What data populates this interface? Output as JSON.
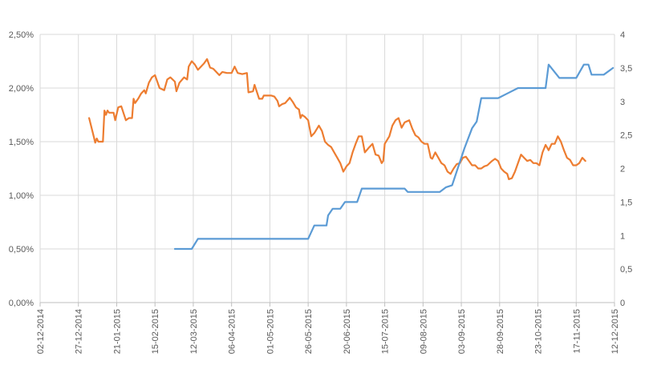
{
  "chart_data": {
    "type": "line",
    "title": "",
    "xlabel": "",
    "ylabel": "",
    "y2label": "",
    "grid": true,
    "legend": "none",
    "x_type": "date",
    "x_ticks": [
      "02-12-2014",
      "27-12-2014",
      "21-01-2015",
      "15-02-2015",
      "12-03-2015",
      "06-04-2015",
      "01-05-2015",
      "26-05-2015",
      "20-06-2015",
      "15-07-2015",
      "09-08-2015",
      "03-09-2015",
      "28-09-2015",
      "23-10-2015",
      "17-11-2015",
      "12-12-2015"
    ],
    "y_left": {
      "min": 0,
      "max": 2.5,
      "ticks": [
        "0,00%",
        "0,50%",
        "1,00%",
        "1,50%",
        "2,00%",
        "2,50%"
      ]
    },
    "y_right": {
      "min": 0,
      "max": 4,
      "ticks": [
        "0",
        "0,5",
        "1",
        "1,5",
        "2",
        "2,5",
        "3",
        "3,5",
        "4"
      ]
    },
    "series": [
      {
        "axis": "left",
        "color": "#ED7D31",
        "points": [
          [
            "2015-01-03",
            1.72
          ],
          [
            "2015-01-06",
            1.55
          ],
          [
            "2015-01-07",
            1.49
          ],
          [
            "2015-01-08",
            1.53
          ],
          [
            "2015-01-09",
            1.5
          ],
          [
            "2015-01-12",
            1.5
          ],
          [
            "2015-01-13",
            1.79
          ],
          [
            "2015-01-14",
            1.75
          ],
          [
            "2015-01-15",
            1.79
          ],
          [
            "2015-01-16",
            1.77
          ],
          [
            "2015-01-19",
            1.77
          ],
          [
            "2015-01-20",
            1.7
          ],
          [
            "2015-01-22",
            1.82
          ],
          [
            "2015-01-24",
            1.83
          ],
          [
            "2015-01-27",
            1.7
          ],
          [
            "2015-01-29",
            1.72
          ],
          [
            "2015-01-31",
            1.72
          ],
          [
            "2015-02-01",
            1.9
          ],
          [
            "2015-02-02",
            1.86
          ],
          [
            "2015-02-04",
            1.9
          ],
          [
            "2015-02-06",
            1.95
          ],
          [
            "2015-02-08",
            1.98
          ],
          [
            "2015-02-09",
            1.95
          ],
          [
            "2015-02-11",
            2.05
          ],
          [
            "2015-02-13",
            2.1
          ],
          [
            "2015-02-15",
            2.12
          ],
          [
            "2015-02-16",
            2.08
          ],
          [
            "2015-02-18",
            2.0
          ],
          [
            "2015-02-21",
            1.98
          ],
          [
            "2015-02-23",
            2.08
          ],
          [
            "2015-02-25",
            2.1
          ],
          [
            "2015-02-28",
            2.06
          ],
          [
            "2015-03-01",
            1.97
          ],
          [
            "2015-03-03",
            2.05
          ],
          [
            "2015-03-06",
            2.1
          ],
          [
            "2015-03-08",
            2.08
          ],
          [
            "2015-03-09",
            2.2
          ],
          [
            "2015-03-11",
            2.25
          ],
          [
            "2015-03-13",
            2.22
          ],
          [
            "2015-03-15",
            2.17
          ],
          [
            "2015-03-17",
            2.2
          ],
          [
            "2015-03-19",
            2.23
          ],
          [
            "2015-03-21",
            2.27
          ],
          [
            "2015-03-23",
            2.19
          ],
          [
            "2015-03-25",
            2.18
          ],
          [
            "2015-03-27",
            2.15
          ],
          [
            "2015-03-29",
            2.12
          ],
          [
            "2015-03-31",
            2.15
          ],
          [
            "2015-04-03",
            2.14
          ],
          [
            "2015-04-06",
            2.14
          ],
          [
            "2015-04-08",
            2.2
          ],
          [
            "2015-04-10",
            2.14
          ],
          [
            "2015-04-13",
            2.13
          ],
          [
            "2015-04-16",
            2.14
          ],
          [
            "2015-04-17",
            1.96
          ],
          [
            "2015-04-20",
            1.97
          ],
          [
            "2015-04-21",
            2.03
          ],
          [
            "2015-04-24",
            1.9
          ],
          [
            "2015-04-26",
            1.9
          ],
          [
            "2015-04-27",
            1.93
          ],
          [
            "2015-04-30",
            1.93
          ],
          [
            "2015-05-02",
            1.93
          ],
          [
            "2015-05-04",
            1.92
          ],
          [
            "2015-05-06",
            1.88
          ],
          [
            "2015-05-07",
            1.83
          ],
          [
            "2015-05-09",
            1.85
          ],
          [
            "2015-05-11",
            1.86
          ],
          [
            "2015-05-14",
            1.91
          ],
          [
            "2015-05-16",
            1.87
          ],
          [
            "2015-05-18",
            1.82
          ],
          [
            "2015-05-20",
            1.8
          ],
          [
            "2015-05-21",
            1.72
          ],
          [
            "2015-05-22",
            1.75
          ],
          [
            "2015-05-24",
            1.73
          ],
          [
            "2015-05-26",
            1.7
          ],
          [
            "2015-05-28",
            1.55
          ],
          [
            "2015-05-30",
            1.58
          ],
          [
            "2015-06-02",
            1.65
          ],
          [
            "2015-06-04",
            1.6
          ],
          [
            "2015-06-06",
            1.5
          ],
          [
            "2015-06-08",
            1.47
          ],
          [
            "2015-06-10",
            1.45
          ],
          [
            "2015-06-12",
            1.4
          ],
          [
            "2015-06-14",
            1.35
          ],
          [
            "2015-06-16",
            1.3
          ],
          [
            "2015-06-18",
            1.22
          ],
          [
            "2015-06-20",
            1.27
          ],
          [
            "2015-06-22",
            1.3
          ],
          [
            "2015-06-24",
            1.4
          ],
          [
            "2015-06-26",
            1.48
          ],
          [
            "2015-06-28",
            1.55
          ],
          [
            "2015-06-30",
            1.55
          ],
          [
            "2015-07-02",
            1.4
          ],
          [
            "2015-07-05",
            1.45
          ],
          [
            "2015-07-07",
            1.48
          ],
          [
            "2015-07-09",
            1.38
          ],
          [
            "2015-07-11",
            1.37
          ],
          [
            "2015-07-13",
            1.3
          ],
          [
            "2015-07-14",
            1.32
          ],
          [
            "2015-07-15",
            1.48
          ],
          [
            "2015-07-18",
            1.55
          ],
          [
            "2015-07-20",
            1.65
          ],
          [
            "2015-07-22",
            1.7
          ],
          [
            "2015-07-24",
            1.72
          ],
          [
            "2015-07-26",
            1.63
          ],
          [
            "2015-07-28",
            1.68
          ],
          [
            "2015-07-31",
            1.7
          ],
          [
            "2015-08-02",
            1.62
          ],
          [
            "2015-08-04",
            1.56
          ],
          [
            "2015-08-06",
            1.54
          ],
          [
            "2015-08-08",
            1.5
          ],
          [
            "2015-08-10",
            1.48
          ],
          [
            "2015-08-12",
            1.48
          ],
          [
            "2015-08-14",
            1.35
          ],
          [
            "2015-08-15",
            1.34
          ],
          [
            "2015-08-17",
            1.4
          ],
          [
            "2015-08-19",
            1.35
          ],
          [
            "2015-08-21",
            1.3
          ],
          [
            "2015-08-23",
            1.28
          ],
          [
            "2015-08-25",
            1.22
          ],
          [
            "2015-08-27",
            1.2
          ],
          [
            "2015-08-29",
            1.25
          ],
          [
            "2015-08-31",
            1.29
          ],
          [
            "2015-09-02",
            1.3
          ],
          [
            "2015-09-04",
            1.35
          ],
          [
            "2015-09-06",
            1.36
          ],
          [
            "2015-09-08",
            1.32
          ],
          [
            "2015-09-10",
            1.28
          ],
          [
            "2015-09-12",
            1.28
          ],
          [
            "2015-09-14",
            1.25
          ],
          [
            "2015-09-16",
            1.25
          ],
          [
            "2015-09-18",
            1.27
          ],
          [
            "2015-09-20",
            1.28
          ],
          [
            "2015-09-23",
            1.32
          ],
          [
            "2015-09-25",
            1.34
          ],
          [
            "2015-09-27",
            1.32
          ],
          [
            "2015-09-29",
            1.25
          ],
          [
            "2015-10-01",
            1.22
          ],
          [
            "2015-10-03",
            1.2
          ],
          [
            "2015-10-04",
            1.15
          ],
          [
            "2015-10-06",
            1.16
          ],
          [
            "2015-10-08",
            1.22
          ],
          [
            "2015-10-10",
            1.3
          ],
          [
            "2015-10-12",
            1.38
          ],
          [
            "2015-10-14",
            1.35
          ],
          [
            "2015-10-16",
            1.32
          ],
          [
            "2015-10-18",
            1.33
          ],
          [
            "2015-10-20",
            1.3
          ],
          [
            "2015-10-22",
            1.3
          ],
          [
            "2015-10-24",
            1.28
          ],
          [
            "2015-10-26",
            1.4
          ],
          [
            "2015-10-28",
            1.47
          ],
          [
            "2015-10-30",
            1.42
          ],
          [
            "2015-11-01",
            1.48
          ],
          [
            "2015-11-03",
            1.48
          ],
          [
            "2015-11-05",
            1.55
          ],
          [
            "2015-11-07",
            1.5
          ],
          [
            "2015-11-09",
            1.42
          ],
          [
            "2015-11-11",
            1.35
          ],
          [
            "2015-11-13",
            1.33
          ],
          [
            "2015-11-15",
            1.28
          ],
          [
            "2015-11-17",
            1.28
          ],
          [
            "2015-11-19",
            1.3
          ],
          [
            "2015-11-21",
            1.35
          ],
          [
            "2015-11-23",
            1.32
          ]
        ]
      },
      {
        "axis": "right",
        "color": "#5B9BD5",
        "points": [
          [
            "2015-02-28",
            0.8
          ],
          [
            "2015-03-11",
            0.8
          ],
          [
            "2015-03-15",
            0.95
          ],
          [
            "2015-05-26",
            0.95
          ],
          [
            "2015-05-30",
            1.15
          ],
          [
            "2015-06-07",
            1.15
          ],
          [
            "2015-06-08",
            1.3
          ],
          [
            "2015-06-11",
            1.4
          ],
          [
            "2015-06-16",
            1.4
          ],
          [
            "2015-06-19",
            1.5
          ],
          [
            "2015-06-27",
            1.5
          ],
          [
            "2015-06-30",
            1.7
          ],
          [
            "2015-07-28",
            1.7
          ],
          [
            "2015-07-30",
            1.65
          ],
          [
            "2015-08-20",
            1.65
          ],
          [
            "2015-08-24",
            1.72
          ],
          [
            "2015-08-28",
            1.75
          ],
          [
            "2015-09-05",
            2.3
          ],
          [
            "2015-09-10",
            2.6
          ],
          [
            "2015-09-13",
            2.7
          ],
          [
            "2015-09-16",
            3.05
          ],
          [
            "2015-09-27",
            3.05
          ],
          [
            "2015-10-10",
            3.2
          ],
          [
            "2015-10-28",
            3.2
          ],
          [
            "2015-10-30",
            3.55
          ],
          [
            "2015-11-06",
            3.35
          ],
          [
            "2015-11-17",
            3.35
          ],
          [
            "2015-11-22",
            3.55
          ],
          [
            "2015-11-25",
            3.55
          ],
          [
            "2015-11-27",
            3.4
          ],
          [
            "2015-12-05",
            3.4
          ],
          [
            "2015-12-11",
            3.5
          ]
        ]
      }
    ]
  }
}
